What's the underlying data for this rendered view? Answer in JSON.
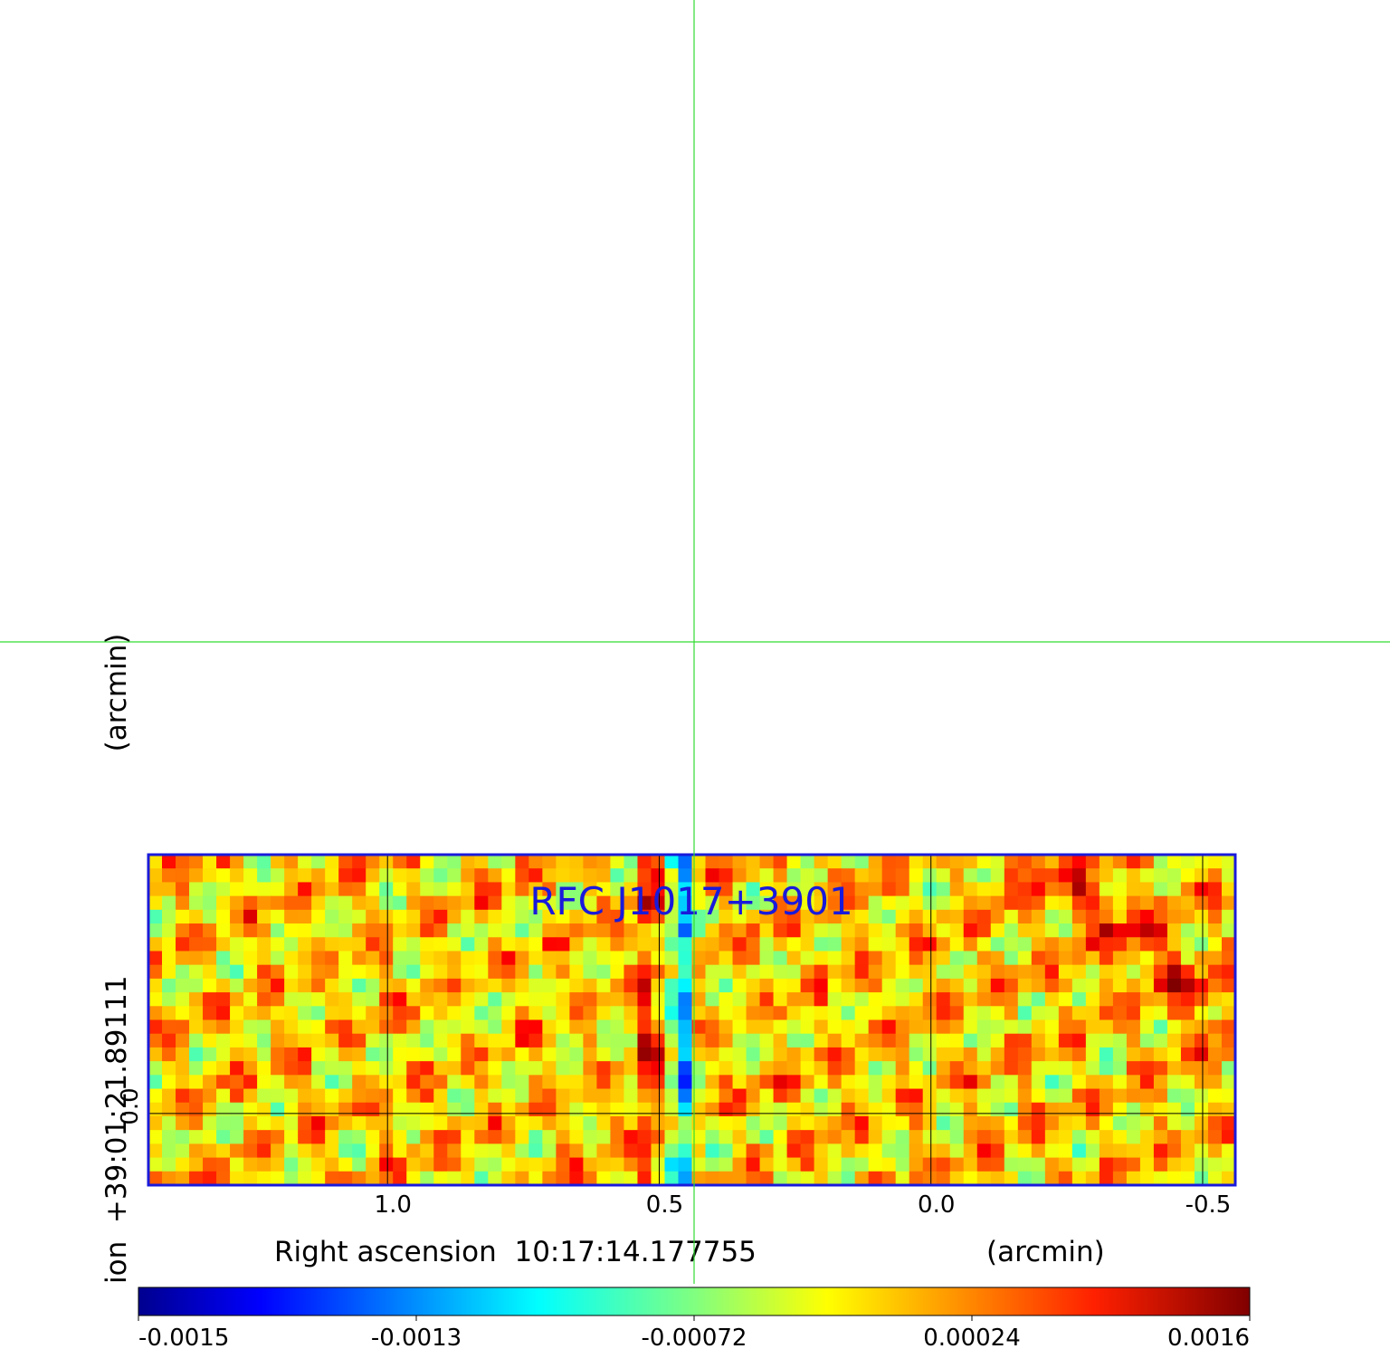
{
  "chart_data": {
    "type": "heatmap",
    "title": "RFC J1017+3901",
    "xlabel": "Right ascension  10:17:14.177755",
    "xunit": "(arcmin)",
    "ylabel": "ion  +39:01:21.89111",
    "yunit": "(arcmin)",
    "x_ticks": [
      "1.0",
      "0.5",
      "0.0",
      "-0.5"
    ],
    "y_ticks": [
      "0.0"
    ],
    "xlim": [
      1.44,
      -0.56
    ],
    "ylim": [
      -0.13,
      0.47
    ],
    "grid": true,
    "colormap": "jet",
    "colorbar": {
      "range": [
        -0.0016,
        0.0018
      ],
      "tick_labels": [
        "-0.0015",
        "-0.0013",
        "-0.00072",
        "0.00024",
        "0.0016"
      ]
    },
    "image_grid": {
      "cols": 80,
      "rows": 24,
      "seed": 7
    },
    "colors": {
      "frame": "#1a1adb",
      "title": "#1a1adb",
      "crosshair": "#33dd33",
      "grid": "#000000"
    }
  }
}
